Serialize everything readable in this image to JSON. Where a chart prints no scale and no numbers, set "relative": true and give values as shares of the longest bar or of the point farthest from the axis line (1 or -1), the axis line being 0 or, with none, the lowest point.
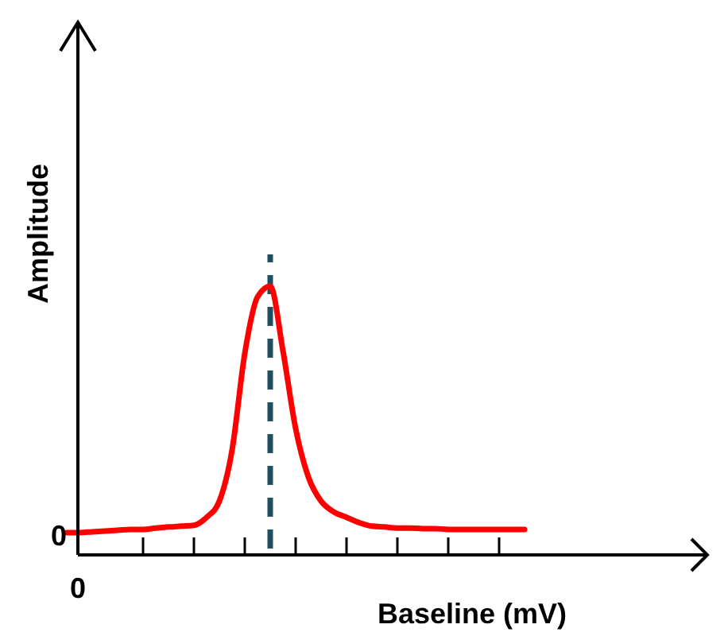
{
  "chart_data": {
    "type": "line",
    "xlabel": "Baseline (mV)",
    "ylabel": "Amplitude",
    "relative": true,
    "categories": [
      null,
      null,
      null,
      null,
      null,
      null,
      null,
      null,
      null,
      null,
      null,
      null,
      null,
      null,
      null,
      null,
      null,
      null,
      null,
      null,
      null,
      null,
      null,
      null,
      null,
      null,
      null,
      null,
      null,
      null,
      null,
      null,
      null,
      null,
      null,
      null,
      null
    ],
    "series": [
      {
        "color": "#ff0000",
        "values": [
          0.083,
          0.083,
          0.086,
          0.089,
          0.092,
          0.095,
          0.095,
          0.1,
          0.104,
          0.107,
          0.11,
          0.14,
          0.2,
          0.39,
          0.75,
          0.96,
          1,
          0.76,
          0.47,
          0.29,
          0.2,
          0.16,
          0.14,
          0.12,
          0.107,
          0.104,
          0.1,
          0.1,
          0.098,
          0.098,
          0.095,
          0.095,
          0.095,
          0.095,
          0.095,
          0.095,
          0.095
        ]
      }
    ],
    "annotations": [
      "0",
      "0"
    ],
    "marker": "none",
    "line_style": "solid"
  }
}
